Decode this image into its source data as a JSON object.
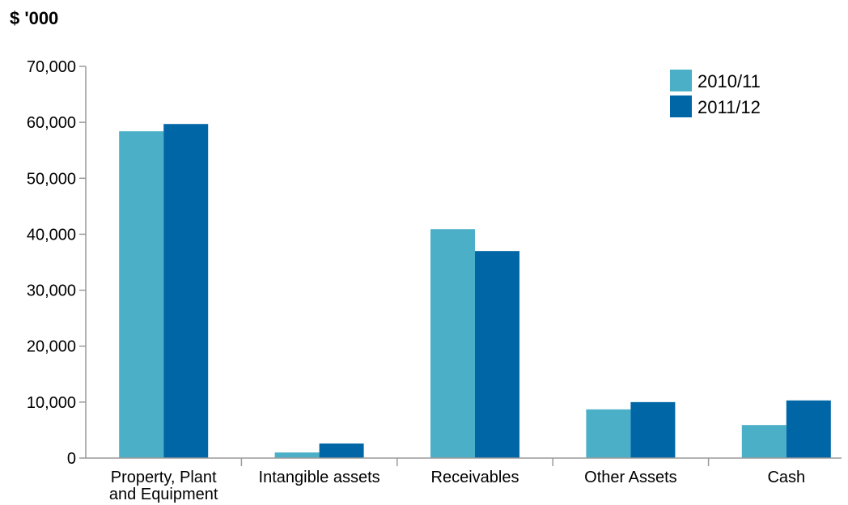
{
  "chart_data": {
    "type": "bar",
    "unit_label": "$ '000",
    "categories": [
      [
        "Property, Plant",
        "and Equipment"
      ],
      [
        "Intangible assets"
      ],
      [
        "Receivables"
      ],
      [
        "Other Assets"
      ],
      [
        "Cash"
      ]
    ],
    "series": [
      {
        "name": "2010/11",
        "color": "#4bafc8",
        "values": [
          58400,
          1000,
          40900,
          8700,
          5900
        ]
      },
      {
        "name": "2011/12",
        "color": "#0066a6",
        "values": [
          59700,
          2600,
          37000,
          10000,
          10300
        ]
      }
    ],
    "ylim": [
      0,
      70000
    ],
    "yticks": [
      "0",
      "10,000",
      "20,000",
      "30,000",
      "40,000",
      "50,000",
      "60,000",
      "70,000"
    ],
    "legend_position": "top-right",
    "grid": false
  }
}
